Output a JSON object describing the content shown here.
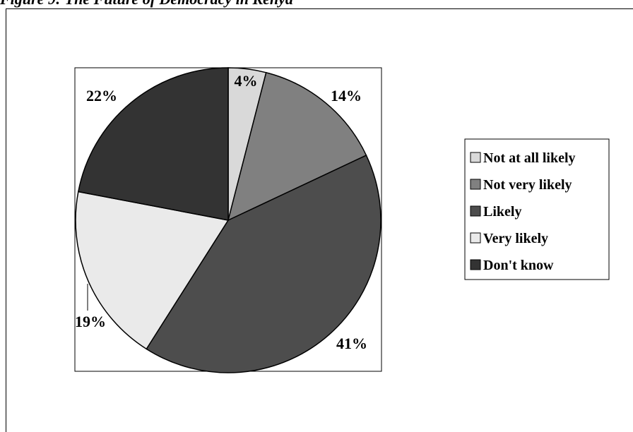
{
  "figure": {
    "title": "Figure 9: The Future of Democracy in Kenya"
  },
  "chart_data": {
    "type": "pie",
    "title": "Figure 9: The Future of Democracy in Kenya",
    "legend_position": "right",
    "slices": [
      {
        "label": "Not at all likely",
        "value": 4,
        "value_label": "4%",
        "color": "#d9d9d9"
      },
      {
        "label": "Not very likely",
        "value": 14,
        "value_label": "14%",
        "color": "#808080"
      },
      {
        "label": "Likely",
        "value": 41,
        "value_label": "41%",
        "color": "#4d4d4d"
      },
      {
        "label": "Very likely",
        "value": 19,
        "value_label": "19%",
        "color": "#eaeaea"
      },
      {
        "label": "Don't know",
        "value": 22,
        "value_label": "22%",
        "color": "#333333"
      }
    ]
  }
}
